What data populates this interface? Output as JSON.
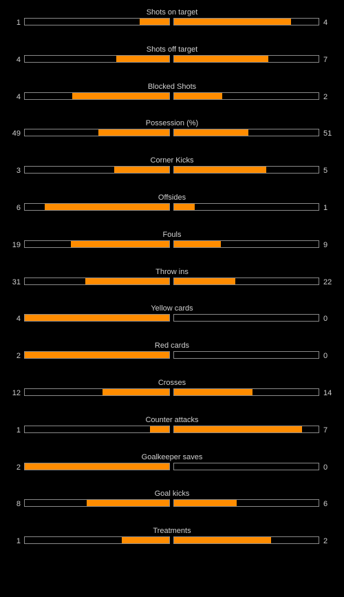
{
  "colors": {
    "background": "#000000",
    "bar_fill": "#ff8c00",
    "bar_border": "#8a8a8a",
    "text": "#d0d0d0"
  },
  "stats": [
    {
      "label": "Shots on target",
      "home": "1",
      "away": "4",
      "home_fill": 0.205,
      "away_fill": 0.81
    },
    {
      "label": "Shots off target",
      "home": "4",
      "away": "7",
      "home_fill": 0.365,
      "away_fill": 0.65
    },
    {
      "label": "Blocked Shots",
      "home": "4",
      "away": "2",
      "home_fill": 0.67,
      "away_fill": 0.335
    },
    {
      "label": "Possession (%)",
      "home": "49",
      "away": "51",
      "home_fill": 0.49,
      "away_fill": 0.515
    },
    {
      "label": "Corner Kicks",
      "home": "3",
      "away": "5",
      "home_fill": 0.38,
      "away_fill": 0.64
    },
    {
      "label": "Offsides",
      "home": "6",
      "away": "1",
      "home_fill": 0.86,
      "away_fill": 0.145
    },
    {
      "label": "Fouls",
      "home": "19",
      "away": "9",
      "home_fill": 0.68,
      "away_fill": 0.325
    },
    {
      "label": "Throw ins",
      "home": "31",
      "away": "22",
      "home_fill": 0.58,
      "away_fill": 0.425
    },
    {
      "label": "Yellow cards",
      "home": "4",
      "away": "0",
      "home_fill": 1.0,
      "away_fill": 0.0
    },
    {
      "label": "Red cards",
      "home": "2",
      "away": "0",
      "home_fill": 1.0,
      "away_fill": 0.0
    },
    {
      "label": "Crosses",
      "home": "12",
      "away": "14",
      "home_fill": 0.46,
      "away_fill": 0.545
    },
    {
      "label": "Counter attacks",
      "home": "1",
      "away": "7",
      "home_fill": 0.135,
      "away_fill": 0.885
    },
    {
      "label": "Goalkeeper saves",
      "home": "2",
      "away": "0",
      "home_fill": 1.0,
      "away_fill": 0.0
    },
    {
      "label": "Goal kicks",
      "home": "8",
      "away": "6",
      "home_fill": 0.57,
      "away_fill": 0.435
    },
    {
      "label": "Treatments",
      "home": "1",
      "away": "2",
      "home_fill": 0.33,
      "away_fill": 0.67
    }
  ]
}
